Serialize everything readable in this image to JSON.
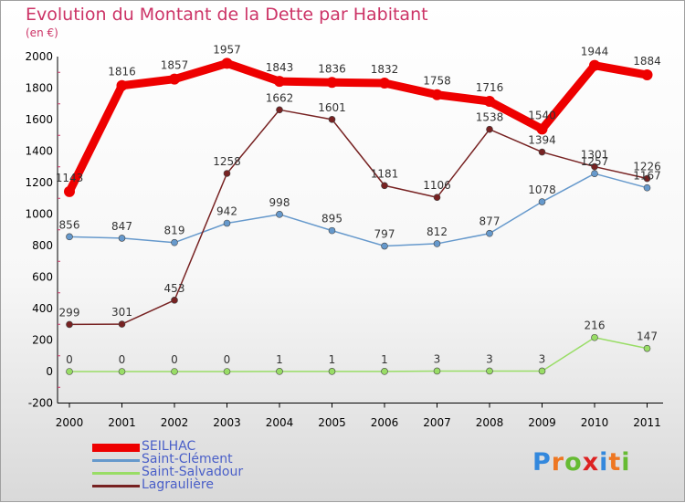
{
  "chart_data": {
    "type": "line",
    "title": "Evolution du Montant de la Dette par Habitant",
    "subtitle": "(en €)",
    "categories": [
      "2000",
      "2001",
      "2002",
      "2003",
      "2004",
      "2005",
      "2006",
      "2007",
      "2008",
      "2009",
      "2010",
      "2011"
    ],
    "y_ticks": [
      "-200",
      "0",
      "200",
      "400",
      "600",
      "800",
      "1000",
      "1200",
      "1400",
      "1600",
      "1800",
      "2000"
    ],
    "ylim": [
      -200,
      2000
    ],
    "grid": false,
    "legend_position": "bottom-left",
    "series": [
      {
        "name": "SEILHAC",
        "color": "#ee0000",
        "values": [
          1143,
          1816,
          1857,
          1957,
          1843,
          1836,
          1832,
          1758,
          1716,
          1540,
          1944,
          1884
        ],
        "labels": [
          "1143",
          "1816",
          "1857",
          "1957",
          "1843",
          "1836",
          "1832",
          "1758",
          "1716",
          "1540",
          "1944",
          "1884"
        ]
      },
      {
        "name": "Saint-Clément",
        "color": "#6699cc",
        "values": [
          856,
          847,
          819,
          942,
          998,
          895,
          797,
          812,
          877,
          1078,
          1257,
          1167
        ],
        "labels": [
          "856",
          "847",
          "819",
          "942",
          "998",
          "895",
          "797",
          "812",
          "877",
          "1078",
          "1257",
          "1167"
        ]
      },
      {
        "name": "Saint-Salvadour",
        "color": "#99dd66",
        "values": [
          0,
          0,
          0,
          0,
          1,
          1,
          1,
          3,
          3,
          3,
          216,
          147
        ],
        "labels": [
          "0",
          "0",
          "0",
          "0",
          "1",
          "1",
          "1",
          "3",
          "3",
          "3",
          "216",
          "147"
        ]
      },
      {
        "name": "Lagraulière",
        "color": "#772222",
        "values": [
          299,
          301,
          453,
          1258,
          1662,
          1601,
          1181,
          1106,
          1538,
          1394,
          1301,
          1226
        ],
        "labels": [
          "299",
          "301",
          "453",
          "1258",
          "1662",
          "1601",
          "1181",
          "1106",
          "1538",
          "1394",
          "1301",
          "1226"
        ]
      }
    ]
  },
  "logo": {
    "text": "Proxiti"
  }
}
